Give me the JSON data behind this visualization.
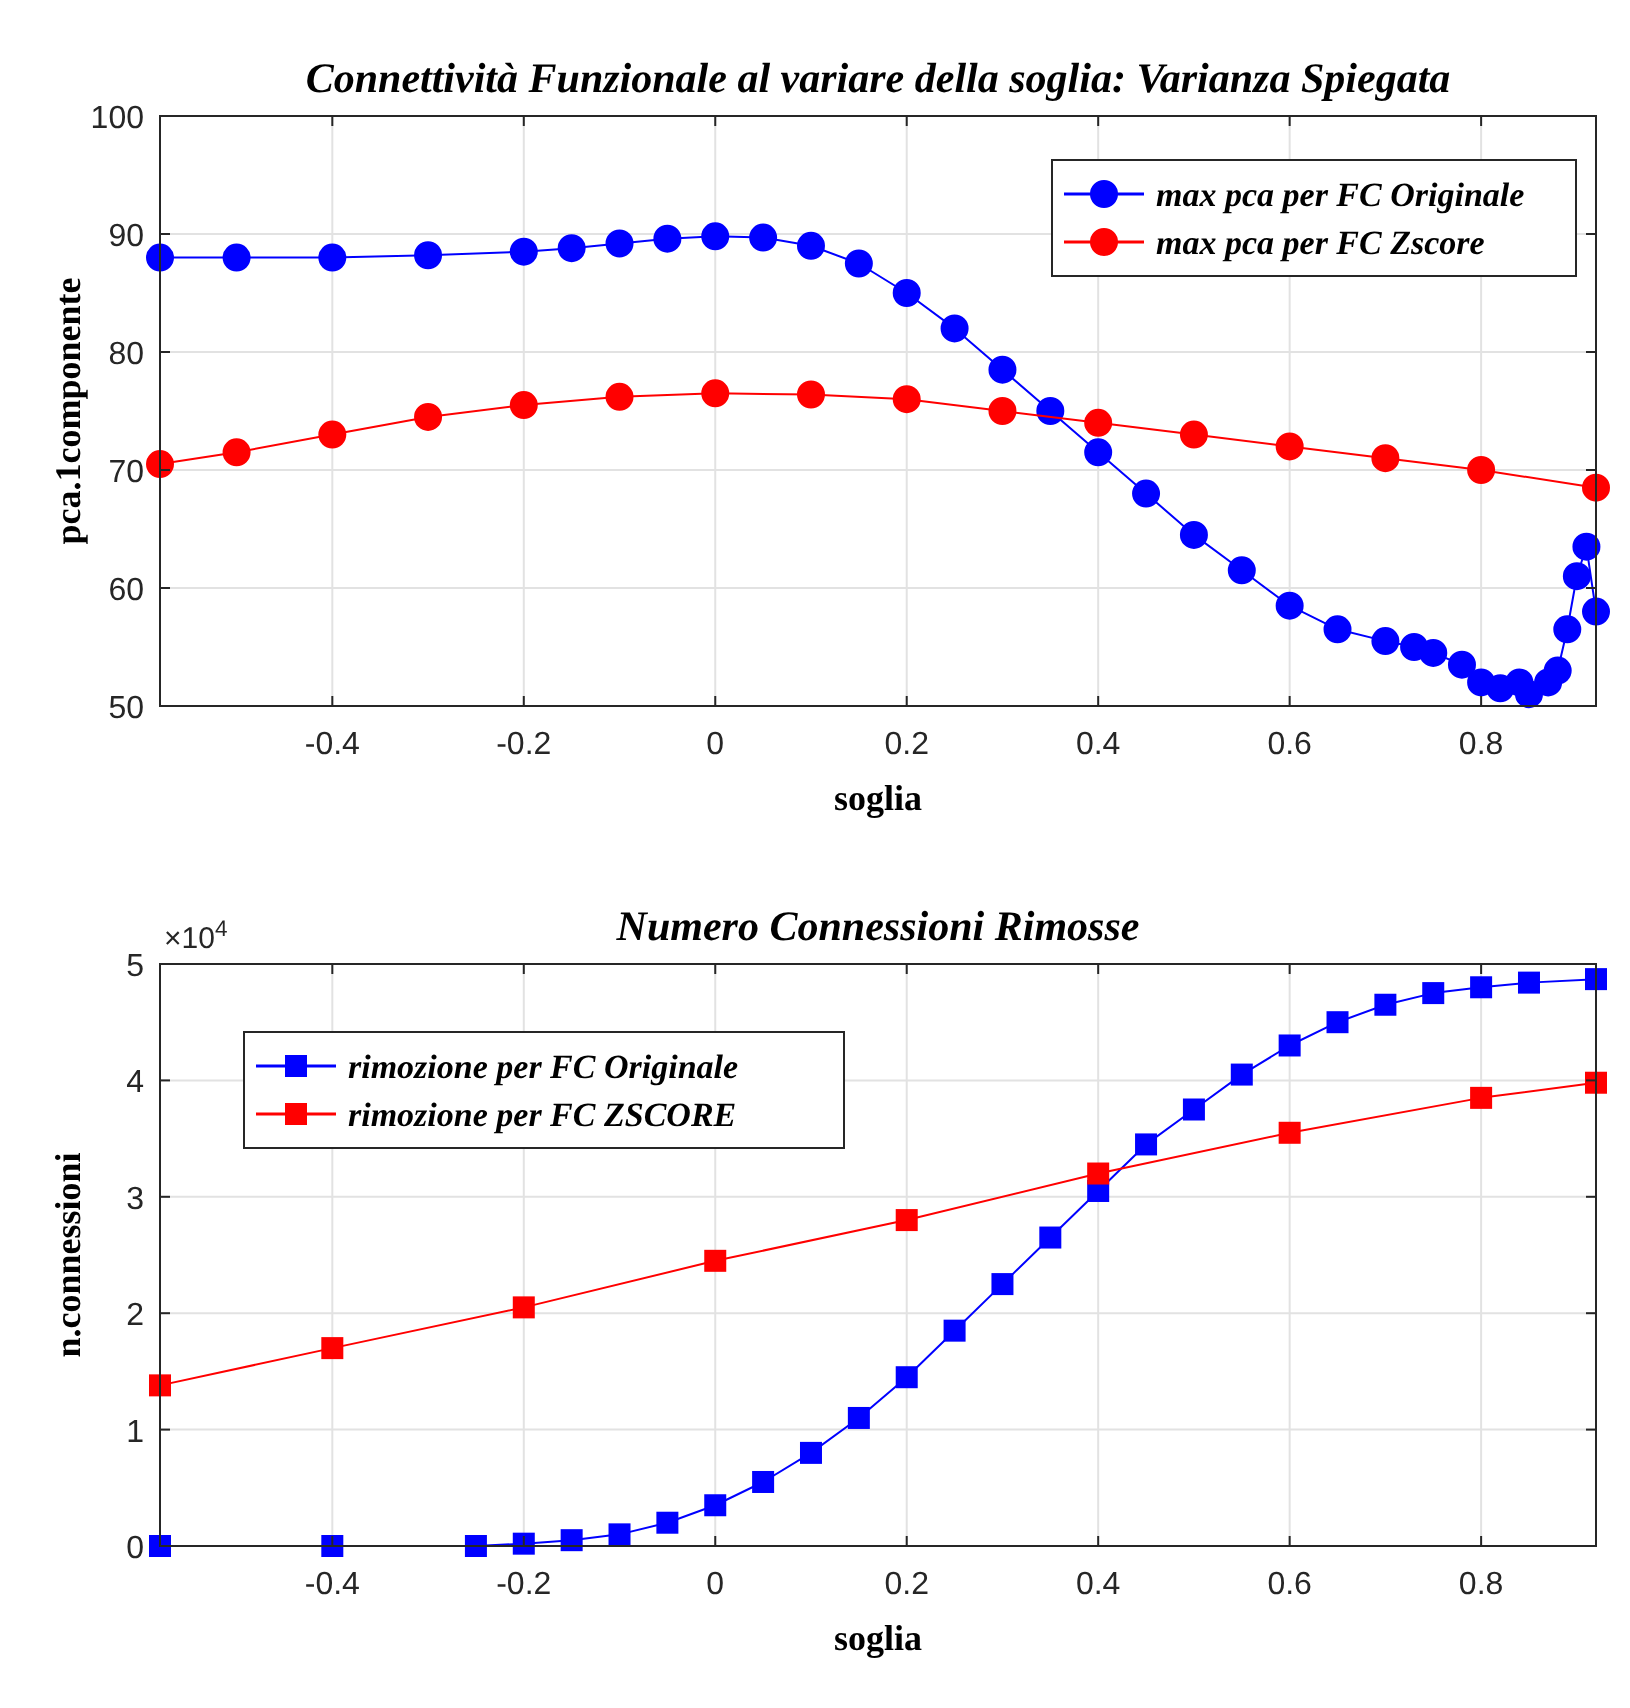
{
  "chart_data": [
    {
      "type": "line",
      "title": "Connettività Funzionale al variare della soglia: Varianza Spiegata",
      "xlabel": "soglia",
      "ylabel": "pca.1componente",
      "xlim": [
        -0.58,
        0.92
      ],
      "xticks": [
        -0.4,
        -0.2,
        0,
        0.2,
        0.4,
        0.6,
        0.8
      ],
      "ylim": [
        50,
        100
      ],
      "yticks": [
        50,
        60,
        70,
        80,
        90,
        100
      ],
      "grid": true,
      "legend": "top right",
      "marker": "circle",
      "line_style": "solid",
      "series": [
        {
          "name": "max pca per FC Originale",
          "color": "#0000ff",
          "x": [
            -0.58,
            -0.5,
            -0.4,
            -0.3,
            -0.2,
            -0.15,
            -0.1,
            -0.05,
            0,
            0.05,
            0.1,
            0.15,
            0.2,
            0.25,
            0.3,
            0.35,
            0.4,
            0.45,
            0.5,
            0.55,
            0.6,
            0.65,
            0.7,
            0.73,
            0.75,
            0.78,
            0.8,
            0.82,
            0.84,
            0.85,
            0.87,
            0.88,
            0.89,
            0.9,
            0.91,
            0.92
          ],
          "values": [
            88,
            88,
            88,
            88.2,
            88.5,
            88.8,
            89.2,
            89.6,
            89.8,
            89.7,
            89,
            87.5,
            85,
            82,
            78.5,
            75,
            71.5,
            68,
            64.5,
            61.5,
            58.5,
            56.5,
            55.5,
            55,
            54.5,
            53.5,
            52,
            51.5,
            52,
            51,
            52,
            53,
            56.5,
            61,
            63.5,
            58
          ]
        },
        {
          "name": "max pca per FC Zscore",
          "color": "#ff0000",
          "x": [
            -0.58,
            -0.5,
            -0.4,
            -0.3,
            -0.2,
            -0.1,
            0,
            0.1,
            0.2,
            0.3,
            0.4,
            0.5,
            0.6,
            0.7,
            0.8,
            0.92
          ],
          "values": [
            70.5,
            71.5,
            73,
            74.5,
            75.5,
            76.2,
            76.5,
            76.4,
            76,
            75,
            74,
            73,
            72,
            71,
            70,
            68.5
          ]
        }
      ]
    },
    {
      "type": "line",
      "title": "Numero Connessioni Rimosse",
      "xlabel": "soglia",
      "ylabel": "n.connessioni",
      "annotations": [
        "×10$^{4}$"
      ],
      "xlim": [
        -0.58,
        0.92
      ],
      "xticks": [
        -0.4,
        -0.2,
        0,
        0.2,
        0.4,
        0.6,
        0.8
      ],
      "ylim": [
        0,
        5
      ],
      "yticks": [
        0,
        1,
        2,
        3,
        4,
        5
      ],
      "grid": true,
      "legend": "top left",
      "marker": "square",
      "line_style": "solid",
      "series": [
        {
          "name": "rimozione per FC Originale",
          "color": "#0000ff",
          "x": [
            -0.58,
            -0.4,
            -0.25,
            -0.2,
            -0.15,
            -0.1,
            -0.05,
            0,
            0.05,
            0.1,
            0.15,
            0.2,
            0.25,
            0.3,
            0.35,
            0.4,
            0.45,
            0.5,
            0.55,
            0.6,
            0.65,
            0.7,
            0.75,
            0.8,
            0.85,
            0.92
          ],
          "values": [
            0,
            0,
            0,
            0.02,
            0.05,
            0.1,
            0.2,
            0.35,
            0.55,
            0.8,
            1.1,
            1.45,
            1.85,
            2.25,
            2.65,
            3.05,
            3.45,
            3.75,
            4.05,
            4.3,
            4.5,
            4.65,
            4.75,
            4.8,
            4.84,
            4.87
          ]
        },
        {
          "name": "rimozione per FC ZSCORE",
          "color": "#ff0000",
          "x": [
            -0.58,
            -0.4,
            -0.2,
            0,
            0.2,
            0.4,
            0.6,
            0.8,
            0.92
          ],
          "values": [
            1.38,
            1.7,
            2.05,
            2.45,
            2.8,
            3.2,
            3.55,
            3.85,
            3.98
          ]
        }
      ]
    }
  ]
}
